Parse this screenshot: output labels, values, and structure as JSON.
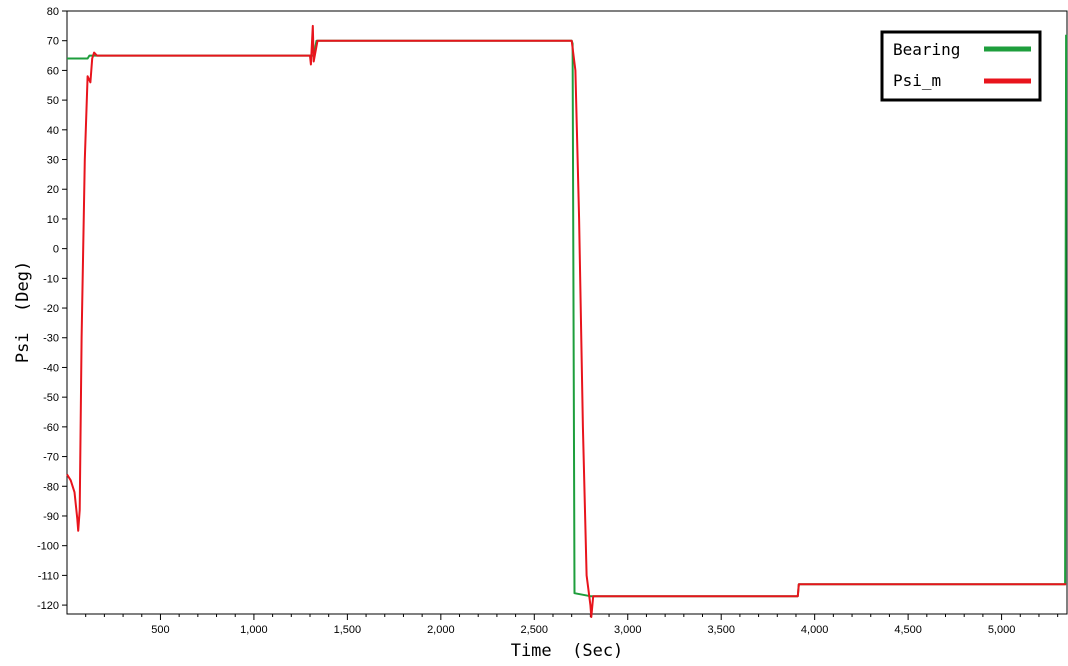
{
  "chart_data": {
    "type": "line",
    "title": "",
    "xlabel": "Time  (Sec)",
    "ylabel": "Psi  (Deg)",
    "xlim": [
      0,
      5350
    ],
    "ylim": [
      -123,
      80
    ],
    "x_ticks": [
      {
        "value": 500,
        "label": "500"
      },
      {
        "value": 1000,
        "label": "1,000"
      },
      {
        "value": 1500,
        "label": "1,500"
      },
      {
        "value": 2000,
        "label": "2,000"
      },
      {
        "value": 2500,
        "label": "2,500"
      },
      {
        "value": 3000,
        "label": "3,000"
      },
      {
        "value": 3500,
        "label": "3,500"
      },
      {
        "value": 4000,
        "label": "4,000"
      },
      {
        "value": 4500,
        "label": "4,500"
      },
      {
        "value": 5000,
        "label": "5,000"
      }
    ],
    "y_ticks": [
      80,
      70,
      60,
      50,
      40,
      30,
      20,
      10,
      0,
      -10,
      -20,
      -30,
      -40,
      -50,
      -60,
      -70,
      -80,
      -90,
      -100,
      -110,
      -120
    ],
    "legend_position": "top-right",
    "series": [
      {
        "name": "Bearing",
        "color": "#1e9e3c",
        "points": [
          [
            0,
            64
          ],
          [
            110,
            64
          ],
          [
            120,
            65
          ],
          [
            1310,
            65
          ],
          [
            1320,
            65
          ],
          [
            1335,
            70
          ],
          [
            2700,
            70
          ],
          [
            2705,
            69
          ],
          [
            2715,
            -116
          ],
          [
            2800,
            -117
          ],
          [
            3910,
            -117
          ],
          [
            3915,
            -113
          ],
          [
            5340,
            -113
          ],
          [
            5345,
            72
          ]
        ]
      },
      {
        "name": "Psi_m",
        "color": "#e8141c",
        "points": [
          [
            0,
            -76
          ],
          [
            20,
            -78
          ],
          [
            40,
            -82
          ],
          [
            55,
            -91
          ],
          [
            60,
            -95
          ],
          [
            68,
            -88
          ],
          [
            78,
            -30
          ],
          [
            95,
            30
          ],
          [
            110,
            58
          ],
          [
            125,
            56
          ],
          [
            135,
            64
          ],
          [
            145,
            66
          ],
          [
            160,
            65
          ],
          [
            1300,
            65
          ],
          [
            1305,
            62
          ],
          [
            1315,
            75
          ],
          [
            1320,
            63
          ],
          [
            1340,
            70
          ],
          [
            2700,
            70
          ],
          [
            2720,
            60
          ],
          [
            2740,
            10
          ],
          [
            2760,
            -60
          ],
          [
            2780,
            -110
          ],
          [
            2800,
            -120
          ],
          [
            2805,
            -124
          ],
          [
            2815,
            -117
          ],
          [
            3910,
            -117
          ],
          [
            3915,
            -113
          ],
          [
            5345,
            -113
          ]
        ]
      }
    ]
  }
}
